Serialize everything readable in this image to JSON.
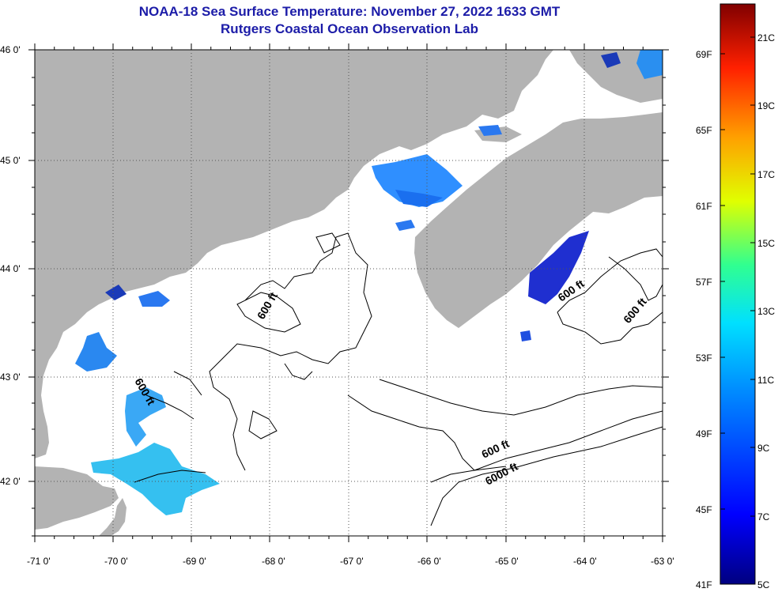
{
  "title_line1": "NOAA-18 Sea Surface Temperature:  November 27, 2022 1633 GMT",
  "title_line2": "Rutgers Coastal Ocean Observation Lab",
  "lat_labels": [
    "46 0'",
    "45 0'",
    "44 0'",
    "43 0'",
    "42 0'"
  ],
  "lon_labels": [
    "-71 0'",
    "-70 0'",
    "-69 0'",
    "-68 0'",
    "-67 0'",
    "-66 0'",
    "-65 0'",
    "-64 0'",
    "-63 0'"
  ],
  "contour_labels": [
    "600 ft",
    "600 ft",
    "600 ft",
    "600 ft",
    "600 ft",
    "6000 ft"
  ],
  "colorbar": {
    "fahrenheit": [
      "69F",
      "65F",
      "61F",
      "57F",
      "53F",
      "49F",
      "45F",
      "41F"
    ],
    "celsius": [
      "21C",
      "19C",
      "17C",
      "15C",
      "13C",
      "11C",
      "9C",
      "7C",
      "5C"
    ]
  },
  "colors": {
    "land": "#b3b3b3",
    "water": "#ffffff",
    "title": "#1c1ca8"
  }
}
